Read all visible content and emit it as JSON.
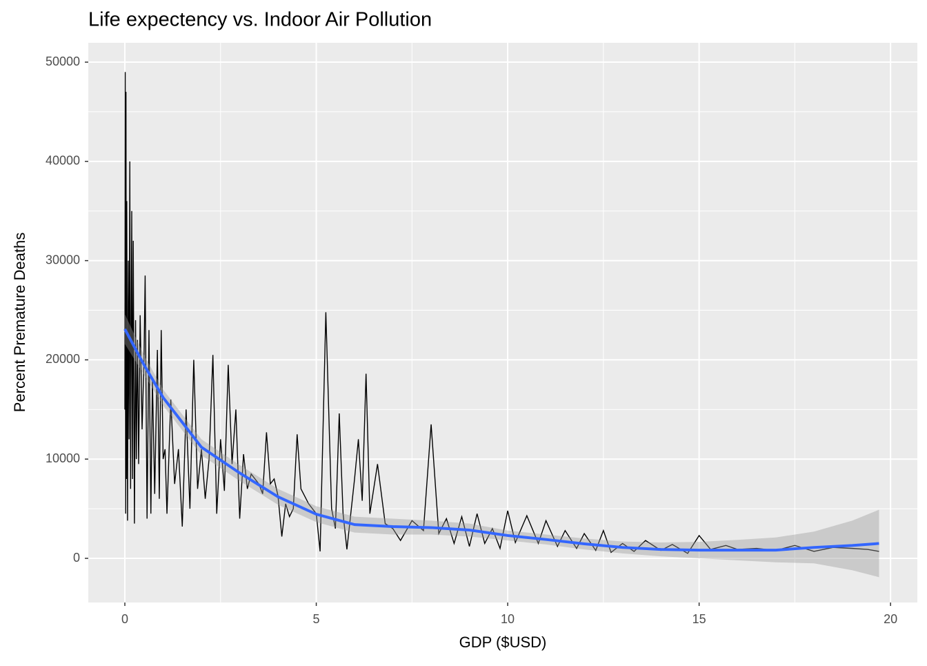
{
  "chart_data": {
    "type": "line",
    "title": "Life expectency vs. Indoor Air Pollution",
    "x_label": "GDP ($USD)",
    "y_label": "Percent Premature Deaths",
    "xlim": [
      -0.955,
      20.7
    ],
    "ylim": [
      -4450,
      51950
    ],
    "xticks": [
      0,
      5,
      10,
      15,
      20
    ],
    "yticks": [
      0,
      10000,
      20000,
      30000,
      40000,
      50000
    ],
    "grid": true,
    "series": [
      {
        "color": "#000000",
        "x": [
          0,
          0.01,
          0.02,
          0.03,
          0.04,
          0.05,
          0.07,
          0.09,
          0.11,
          0.13,
          0.15,
          0.18,
          0.2,
          0.22,
          0.25,
          0.28,
          0.3,
          0.33,
          0.36,
          0.4,
          0.45,
          0.5,
          0.53,
          0.58,
          0.63,
          0.68,
          0.72,
          0.78,
          0.85,
          0.9,
          0.95,
          1.0,
          1.05,
          1.1,
          1.2,
          1.3,
          1.4,
          1.5,
          1.6,
          1.7,
          1.8,
          1.9,
          2.0,
          2.1,
          2.2,
          2.3,
          2.4,
          2.5,
          2.6,
          2.7,
          2.8,
          2.9,
          3.0,
          3.1,
          3.2,
          3.3,
          3.5,
          3.6,
          3.7,
          3.8,
          3.9,
          4.0,
          4.1,
          4.2,
          4.3,
          4.4,
          4.5,
          4.6,
          4.8,
          5.0,
          5.1,
          5.25,
          5.4,
          5.5,
          5.6,
          5.7,
          5.8,
          6.0,
          6.1,
          6.2,
          6.3,
          6.4,
          6.6,
          6.8,
          7.0,
          7.2,
          7.5,
          7.8,
          8.0,
          8.2,
          8.4,
          8.6,
          8.8,
          9.0,
          9.2,
          9.4,
          9.6,
          9.8,
          10.0,
          10.2,
          10.5,
          10.8,
          11.0,
          11.3,
          11.5,
          11.8,
          12.0,
          12.3,
          12.5,
          12.7,
          13.0,
          13.3,
          13.6,
          14.0,
          14.3,
          14.7,
          15.0,
          15.3,
          15.7,
          16.0,
          16.5,
          17.0,
          17.5,
          18.0,
          18.5,
          19.0,
          19.4,
          19.7
        ],
        "values": [
          15000,
          49000,
          4500,
          47000,
          8000,
          36000,
          3800,
          30000,
          12000,
          40000,
          7000,
          35000,
          8000,
          32000,
          3500,
          24000,
          10000,
          22000,
          9500,
          24500,
          13000,
          20000,
          28500,
          4000,
          23000,
          4500,
          18000,
          6500,
          21000,
          6000,
          23000,
          10000,
          11000,
          4500,
          16000,
          7500,
          11000,
          3200,
          15000,
          5000,
          20000,
          7000,
          11000,
          6000,
          10000,
          20500,
          4500,
          12000,
          6800,
          19500,
          9500,
          15000,
          4000,
          10500,
          7000,
          8500,
          7500,
          6500,
          12700,
          7500,
          8000,
          6300,
          2200,
          5500,
          4200,
          5000,
          12500,
          7000,
          5500,
          4500,
          700,
          24800,
          5000,
          3000,
          14600,
          4500,
          900,
          8000,
          12000,
          5800,
          18600,
          4500,
          9500,
          3500,
          3000,
          1800,
          3800,
          2800,
          13500,
          2500,
          4000,
          1500,
          4200,
          1200,
          4500,
          1500,
          3000,
          1000,
          4800,
          1600,
          4300,
          1500,
          3800,
          1200,
          2800,
          1000,
          2500,
          800,
          2800,
          600,
          1500,
          700,
          1800,
          800,
          1400,
          500,
          2300,
          900,
          1300,
          900,
          1000,
          800,
          1300,
          700,
          1100,
          1000,
          900,
          700
        ]
      }
    ],
    "smooth": {
      "color": "#3366FF",
      "band_color": "#999999",
      "x": [
        0,
        0.5,
        1,
        2,
        3,
        4,
        5,
        6,
        7,
        8,
        9,
        10,
        11,
        12,
        13,
        14,
        15,
        16,
        17,
        18,
        19,
        19.7
      ],
      "values": [
        23100,
        19500,
        16200,
        11200,
        8600,
        6200,
        4450,
        3400,
        3200,
        3100,
        2850,
        2300,
        1900,
        1460,
        1100,
        900,
        830,
        830,
        830,
        1100,
        1300,
        1500
      ],
      "lower": [
        21600,
        18500,
        15400,
        10400,
        7800,
        5400,
        3650,
        2600,
        2400,
        2400,
        2200,
        1800,
        1400,
        900,
        500,
        200,
        0,
        -200,
        -400,
        -500,
        -1200,
        -1900
      ],
      "upper": [
        24600,
        20500,
        17000,
        12000,
        9400,
        7000,
        5250,
        4200,
        4000,
        3800,
        3500,
        2800,
        2400,
        2000,
        1700,
        1600,
        1660,
        1860,
        2100,
        2700,
        3800,
        4900
      ]
    }
  }
}
